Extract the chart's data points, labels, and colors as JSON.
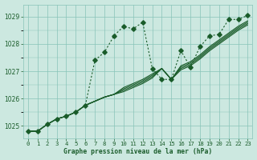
{
  "title": "Graphe pression niveau de la mer (hPa)",
  "background_color": "#cce8e0",
  "grid_color": "#88c4b8",
  "line_color": "#1a5c2a",
  "xlim": [
    -0.5,
    23.5
  ],
  "ylim": [
    1024.55,
    1029.45
  ],
  "yticks": [
    1025,
    1026,
    1027,
    1028,
    1029
  ],
  "lw": 0.8,
  "series_main": [
    1024.8,
    1024.8,
    1025.05,
    1025.25,
    1025.35,
    1025.5,
    1025.75,
    1027.4,
    1027.7,
    1028.3,
    1028.65,
    1028.55,
    1028.8,
    1027.1,
    1026.7,
    1026.7,
    1027.75,
    1027.15,
    1027.9,
    1028.3,
    1028.35,
    1028.9,
    1028.9,
    1029.05
  ],
  "series_cluster": [
    [
      1024.8,
      1024.8,
      1025.05,
      1025.25,
      1025.35,
      1025.5,
      1025.75,
      1025.9,
      1026.05,
      1026.15,
      1026.25,
      1026.4,
      1026.55,
      1026.75,
      1027.1,
      1026.7,
      1027.05,
      1027.2,
      1027.45,
      1027.75,
      1028.0,
      1028.25,
      1028.5,
      1028.7
    ],
    [
      1024.8,
      1024.8,
      1025.05,
      1025.25,
      1025.35,
      1025.5,
      1025.75,
      1025.9,
      1026.05,
      1026.15,
      1026.3,
      1026.45,
      1026.6,
      1026.8,
      1027.1,
      1026.7,
      1027.1,
      1027.25,
      1027.5,
      1027.8,
      1028.05,
      1028.3,
      1028.55,
      1028.75
    ],
    [
      1024.8,
      1024.8,
      1025.05,
      1025.25,
      1025.35,
      1025.5,
      1025.75,
      1025.9,
      1026.05,
      1026.15,
      1026.35,
      1026.5,
      1026.65,
      1026.85,
      1027.1,
      1026.7,
      1027.15,
      1027.3,
      1027.55,
      1027.85,
      1028.1,
      1028.35,
      1028.6,
      1028.8
    ],
    [
      1024.8,
      1024.8,
      1025.05,
      1025.25,
      1025.35,
      1025.5,
      1025.75,
      1025.9,
      1026.05,
      1026.15,
      1026.4,
      1026.55,
      1026.7,
      1026.9,
      1027.1,
      1026.7,
      1027.2,
      1027.35,
      1027.6,
      1027.9,
      1028.15,
      1028.4,
      1028.65,
      1028.85
    ]
  ]
}
